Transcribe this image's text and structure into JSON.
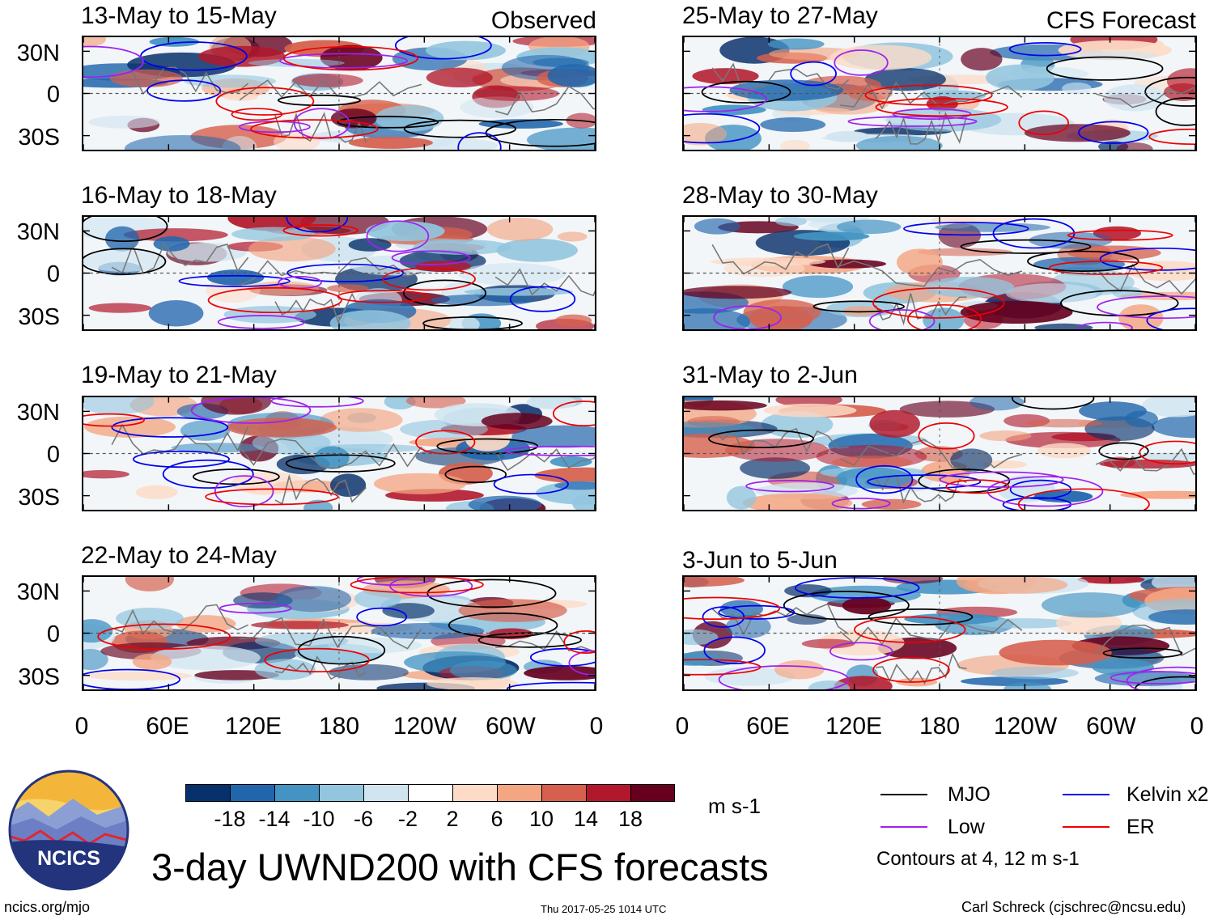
{
  "chart_data": {
    "type": "heatmap",
    "title": "3-day UWND200 with CFS forecasts",
    "variable": "UWND200",
    "units": "m s-1",
    "latitude_range": [
      -40,
      40
    ],
    "longitude_range": [
      0,
      360
    ],
    "lat_ticks": [
      "30N",
      "0",
      "30S"
    ],
    "lon_ticks": [
      "0",
      "60E",
      "120E",
      "180",
      "120W",
      "60W",
      "0"
    ],
    "observed_label": "Observed",
    "forecast_label": "CFS Forecast",
    "observed_panels": [
      {
        "period": "13-May to 15-May"
      },
      {
        "period": "16-May to 18-May"
      },
      {
        "period": "19-May to 21-May"
      },
      {
        "period": "22-May to 24-May"
      }
    ],
    "forecast_panels": [
      {
        "period": "25-May to 27-May"
      },
      {
        "period": "28-May to 30-May"
      },
      {
        "period": "31-May to 2-Jun"
      },
      {
        "period": "3-Jun to 5-Jun"
      }
    ],
    "colorbar": {
      "ticks": [
        "-18",
        "-14",
        "-10",
        "-6",
        "-2",
        "2",
        "6",
        "10",
        "14",
        "18"
      ],
      "colors": [
        "#08306b",
        "#2166ac",
        "#4393c3",
        "#92c5de",
        "#d1e5f0",
        "#ffffff",
        "#fddbc7",
        "#f4a582",
        "#d6604d",
        "#b2182b",
        "#67001f"
      ],
      "units_label": "m s-1"
    },
    "legend": [
      {
        "label": "MJO",
        "color": "#000000"
      },
      {
        "label": "Kelvin x2",
        "color": "#0000ee"
      },
      {
        "label": "Low",
        "color": "#a020f0"
      },
      {
        "label": "ER",
        "color": "#ee0000"
      }
    ],
    "contours_note": "Contours at 4, 12 m s-1"
  },
  "logo": {
    "text": "NCICS"
  },
  "footer": {
    "left": "ncics.org/mjo",
    "center": "Thu 2017-05-25 1014 UTC",
    "right": "Carl Schreck (cjschrec@ncsu.edu)"
  }
}
